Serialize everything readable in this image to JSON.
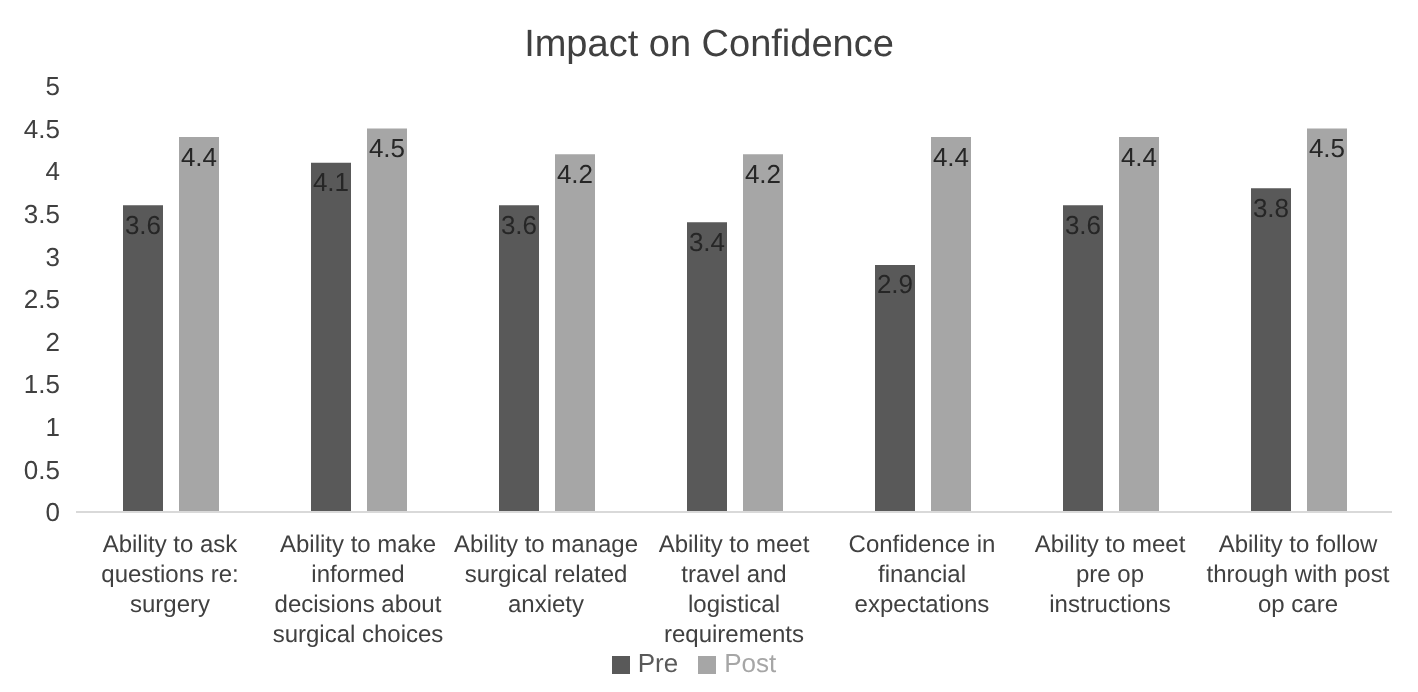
{
  "chart_data": {
    "type": "bar",
    "title": "Impact on Confidence",
    "categories": [
      "Ability to ask questions re: surgery",
      "Ability to make informed decisions about surgical choices",
      "Ability to manage surgical related anxiety",
      "Ability to meet travel and logistical requirements",
      "Confidence in financial expectations",
      "Ability to meet pre op instructions",
      "Ability to follow through with post op care"
    ],
    "series": [
      {
        "name": "Pre",
        "color": "#595959",
        "values": [
          3.6,
          4.1,
          3.6,
          3.4,
          2.9,
          3.6,
          3.8
        ]
      },
      {
        "name": "Post",
        "color": "#a6a6a6",
        "values": [
          4.4,
          4.5,
          4.2,
          4.2,
          4.4,
          4.4,
          4.5
        ]
      }
    ],
    "ylim": [
      0,
      5
    ],
    "yticks": [
      0,
      0.5,
      1,
      1.5,
      2,
      2.5,
      3,
      3.5,
      4,
      4.5,
      5
    ],
    "data_labels": true,
    "grid": false,
    "legend": "bottom"
  }
}
